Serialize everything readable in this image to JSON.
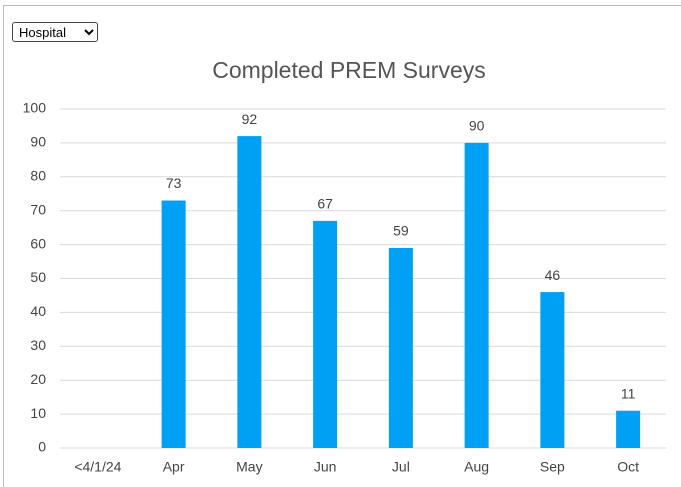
{
  "dropdown": {
    "selected": "Hospital"
  },
  "chart_data": {
    "type": "bar",
    "title": "Completed PREM Surveys",
    "categories": [
      "<4/1/24",
      "Apr",
      "May",
      "Jun",
      "Jul",
      "Aug",
      "Sep",
      "Oct"
    ],
    "values": [
      null,
      73,
      92,
      67,
      59,
      90,
      46,
      11
    ],
    "color": "#00a0f4",
    "ylim": [
      0,
      100
    ],
    "yticks": [
      0,
      10,
      20,
      30,
      40,
      50,
      60,
      70,
      80,
      90,
      100
    ],
    "grid": true
  }
}
